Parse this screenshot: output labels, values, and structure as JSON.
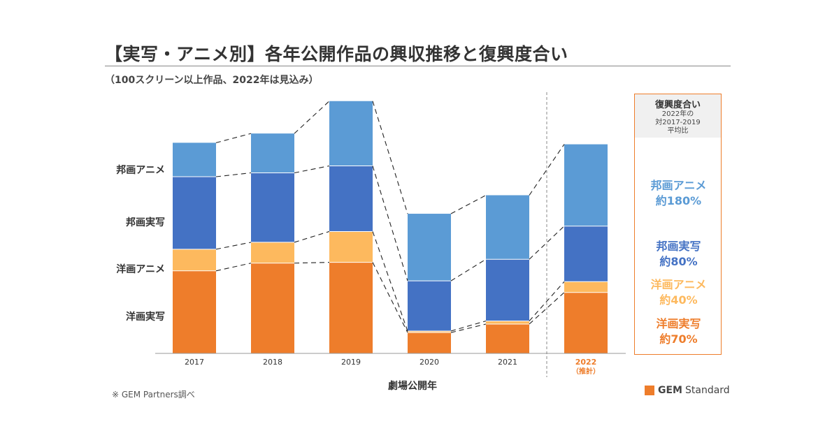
{
  "title": "【実写・アニメ別】各年公開作品の興収推移と復興度合い",
  "subtitle": "（100スクリーン以上作品、2022年は見込み）",
  "row_labels": [
    "邦画アニメ",
    "邦画実写",
    "洋画アニメ",
    "洋画実写"
  ],
  "xlabel": "劇場公開年",
  "source": "※ GEM Partners調べ",
  "brand": {
    "bold": "GEM",
    "rest": "Standard"
  },
  "colors": {
    "western_live": "#ee7d2b",
    "western_anime": "#fdb95e",
    "japanese_live": "#4472c4",
    "japanese_anime": "#5b9bd5",
    "accent": "#ee7d2b"
  },
  "legend": {
    "head": "復興度合い",
    "sub1": "2022年の",
    "sub2": "対2017-2019",
    "sub3": "平均比",
    "items": [
      {
        "name": "邦画アニメ",
        "value": "約180%",
        "color": "#5b9bd5"
      },
      {
        "name": "邦画実写",
        "value": "約80%",
        "color": "#4472c4"
      },
      {
        "name": "洋画アニメ",
        "value": "約40%",
        "color": "#fdb95e"
      },
      {
        "name": "洋画実写",
        "value": "約70%",
        "color": "#ee7d2b"
      }
    ]
  },
  "chart_data": {
    "type": "bar",
    "stacked": true,
    "categories": [
      "2017",
      "2018",
      "2019",
      "2020",
      "2021",
      "2022"
    ],
    "category_notes": [
      "",
      "",
      "",
      "",
      "",
      "（推計）"
    ],
    "highlight_category": "2022",
    "series": [
      {
        "name": "洋画実写",
        "values": [
          107,
          117,
          118,
          27,
          38,
          79
        ],
        "color": "#ee7d2b"
      },
      {
        "name": "洋画アニメ",
        "values": [
          28,
          27,
          40,
          2,
          4,
          14
        ],
        "color": "#fdb95e"
      },
      {
        "name": "邦画実写",
        "values": [
          94,
          90,
          85,
          65,
          80,
          72
        ],
        "color": "#4472c4"
      },
      {
        "name": "邦画アニメ",
        "values": [
          44,
          51,
          84,
          87,
          83,
          106
        ],
        "color": "#5b9bd5"
      }
    ],
    "ylim": [
      0,
      315
    ],
    "grid": false,
    "connectors": "dashed"
  }
}
